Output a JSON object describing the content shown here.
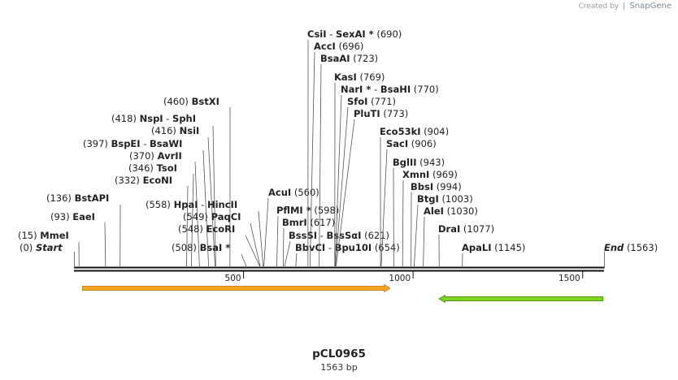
{
  "credit": {
    "prefix": "Created by",
    "brand": "SnapGene"
  },
  "plasmid": {
    "name": "pCL0965",
    "length_label": "1563 bp",
    "length": 1563
  },
  "ruler": {
    "ticks": [
      {
        "bp": 500,
        "label": "500"
      },
      {
        "bp": 1000,
        "label": "1000"
      },
      {
        "bp": 1500,
        "label": "1500"
      }
    ]
  },
  "ends": {
    "start": {
      "label": "Start",
      "pos": "(0)"
    },
    "end": {
      "label": "End",
      "pos": "(1563)"
    }
  },
  "features": [
    {
      "name": "orange-arrow-feature",
      "start_bp": 25,
      "end_bp": 932,
      "direction": "forward",
      "color": "#f5a623",
      "border": "#c8861a"
    },
    {
      "name": "green-arrow-feature",
      "start_bp": 1077,
      "end_bp": 1560,
      "direction": "reverse",
      "color": "#7ed321",
      "border": "#4f9a12"
    }
  ],
  "sites": [
    {
      "label": "MmeI",
      "pos": "(15)",
      "bp": 15,
      "side": "left",
      "star": false
    },
    {
      "label": "EaeI",
      "pos": "(93)",
      "bp": 93,
      "side": "left",
      "star": false
    },
    {
      "label": "BstAPI",
      "pos": "(136)",
      "bp": 136,
      "side": "left",
      "star": false
    },
    {
      "label": "EcoNI",
      "pos": "(332)",
      "bp": 332,
      "side": "left",
      "star": false
    },
    {
      "label": "TsoI",
      "pos": "(346)",
      "bp": 346,
      "side": "left",
      "star": false
    },
    {
      "label": "AvrII",
      "pos": "(370)",
      "bp": 370,
      "side": "left",
      "star": false
    },
    {
      "label": "BspEI",
      "label2": "BsaWI",
      "pos": "(397)",
      "bp": 397,
      "side": "left",
      "star": false
    },
    {
      "label": "NsiI",
      "pos": "(416)",
      "bp": 416,
      "side": "left",
      "star": false
    },
    {
      "label": "NspI",
      "label2": "SphI",
      "pos": "(418)",
      "bp": 418,
      "side": "left",
      "star": false
    },
    {
      "label": "BstXI",
      "pos": "(460)",
      "bp": 460,
      "side": "left",
      "star": false
    },
    {
      "label": "BsaI",
      "pos": "(508)",
      "bp": 508,
      "side": "left",
      "star": true
    },
    {
      "label": "EcoRI",
      "pos": "(548)",
      "bp": 548,
      "side": "left",
      "star": false
    },
    {
      "label": "PaqCI",
      "pos": "(549)",
      "bp": 549,
      "side": "left",
      "star": false
    },
    {
      "label": "HpaI",
      "label2": "HincII",
      "pos": "(558)",
      "bp": 558,
      "side": "left",
      "star": false
    },
    {
      "label": "AcuI",
      "pos": "(560)",
      "bp": 560,
      "side": "right",
      "star": false
    },
    {
      "label": "PflMI",
      "pos": "(598)",
      "bp": 598,
      "side": "right",
      "star": true
    },
    {
      "label": "BmrI",
      "pos": "(617)",
      "bp": 617,
      "side": "right",
      "star": false
    },
    {
      "label": "BssSI",
      "label2": "BssSαI",
      "pos": "(621)",
      "bp": 621,
      "side": "right",
      "star": false
    },
    {
      "label": "BbvCI",
      "label2": "Bpu10I",
      "pos": "(654)",
      "bp": 654,
      "side": "right",
      "star": false
    },
    {
      "label": "CsiI",
      "label2": "SexAI",
      "pos": "(690)",
      "bp": 690,
      "side": "right",
      "star": false,
      "star2": true
    },
    {
      "label": "AccI",
      "pos": "(696)",
      "bp": 696,
      "side": "right",
      "star": false
    },
    {
      "label": "BsaAI",
      "pos": "(723)",
      "bp": 723,
      "side": "right",
      "star": false
    },
    {
      "label": "KasI",
      "pos": "(769)",
      "bp": 769,
      "side": "right",
      "star": false
    },
    {
      "label": "NarI",
      "label2": "BsaHI",
      "pos": "(770)",
      "bp": 770,
      "side": "right",
      "star": true
    },
    {
      "label": "SfoI",
      "pos": "(771)",
      "bp": 771,
      "side": "right",
      "star": false
    },
    {
      "label": "PluTI",
      "pos": "(773)",
      "bp": 773,
      "side": "right",
      "star": false
    },
    {
      "label": "Eco53kI",
      "pos": "(904)",
      "bp": 904,
      "side": "right",
      "star": false
    },
    {
      "label": "SacI",
      "pos": "(906)",
      "bp": 906,
      "side": "right",
      "star": false
    },
    {
      "label": "BglII",
      "pos": "(943)",
      "bp": 943,
      "side": "right",
      "star": false
    },
    {
      "label": "XmnI",
      "pos": "(969)",
      "bp": 969,
      "side": "right",
      "star": false
    },
    {
      "label": "BbsI",
      "pos": "(994)",
      "bp": 994,
      "side": "right",
      "star": false
    },
    {
      "label": "BtgI",
      "pos": "(1003)",
      "bp": 1003,
      "side": "right",
      "star": false
    },
    {
      "label": "AleI",
      "pos": "(1030)",
      "bp": 1030,
      "side": "right",
      "star": false
    },
    {
      "label": "DraI",
      "pos": "(1077)",
      "bp": 1077,
      "side": "right",
      "star": false
    },
    {
      "label": "ApaLI",
      "pos": "(1145)",
      "bp": 1145,
      "side": "right",
      "star": false
    }
  ]
}
